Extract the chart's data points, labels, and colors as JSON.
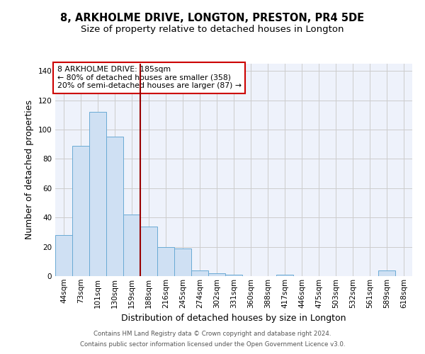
{
  "title": "8, ARKHOLME DRIVE, LONGTON, PRESTON, PR4 5DE",
  "subtitle": "Size of property relative to detached houses in Longton",
  "xlabel": "Distribution of detached houses by size in Longton",
  "ylabel": "Number of detached properties",
  "categories": [
    "44sqm",
    "73sqm",
    "101sqm",
    "130sqm",
    "159sqm",
    "188sqm",
    "216sqm",
    "245sqm",
    "274sqm",
    "302sqm",
    "331sqm",
    "360sqm",
    "388sqm",
    "417sqm",
    "446sqm",
    "475sqm",
    "503sqm",
    "532sqm",
    "561sqm",
    "589sqm",
    "618sqm"
  ],
  "values": [
    28,
    89,
    112,
    95,
    42,
    34,
    20,
    19,
    4,
    2,
    1,
    0,
    0,
    1,
    0,
    0,
    0,
    0,
    0,
    4,
    0
  ],
  "bar_color": "#cfe0f3",
  "bar_edge_color": "#6aaad4",
  "red_line_index": 5,
  "annotation_lines": [
    "8 ARKHOLME DRIVE: 185sqm",
    "← 80% of detached houses are smaller (358)",
    "20% of semi-detached houses are larger (87) →"
  ],
  "annotation_box_color": "#ffffff",
  "annotation_box_edge_color": "#cc0000",
  "footnote1": "Contains HM Land Registry data © Crown copyright and database right 2024.",
  "footnote2": "Contains public sector information licensed under the Open Government Licence v3.0.",
  "ylim": [
    0,
    145
  ],
  "yticks": [
    0,
    20,
    40,
    60,
    80,
    100,
    120,
    140
  ],
  "grid_color": "#cccccc",
  "background_color": "#eef2fb",
  "title_fontsize": 10.5,
  "subtitle_fontsize": 9.5,
  "tick_fontsize": 7.5,
  "label_fontsize": 9
}
